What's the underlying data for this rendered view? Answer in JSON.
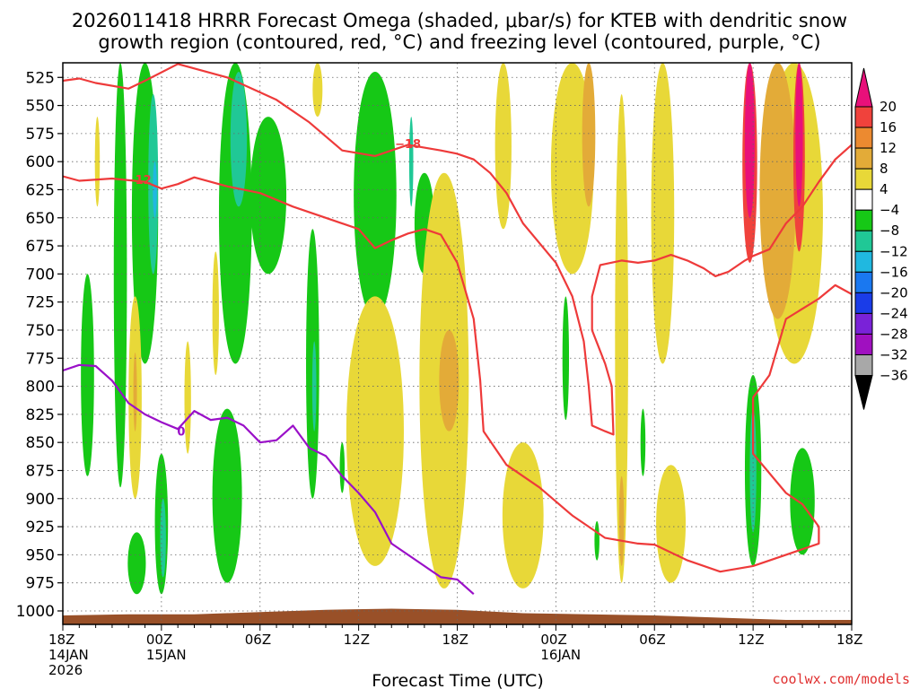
{
  "chart_data": {
    "type": "heatmap",
    "title_line1": "2026011418 HRRR Forecast Omega (shaded, μbar/s) for KTEB with dendritic snow",
    "title_line2": "growth region (contoured, red, °C) and freezing level (contoured, purple, °C)",
    "xlabel": "Forecast Time (UTC)",
    "credit": "coolwx.com/models",
    "x_range_hours": [
      0,
      48
    ],
    "y_range_mb": [
      512,
      1012
    ],
    "y_ticks": [
      525,
      550,
      575,
      600,
      625,
      650,
      675,
      700,
      725,
      750,
      775,
      800,
      825,
      850,
      875,
      900,
      925,
      950,
      975,
      1000
    ],
    "x_ticks": [
      {
        "hour": 0,
        "l1": "18Z",
        "l2": "14JAN",
        "l3": "2026"
      },
      {
        "hour": 6,
        "l1": "00Z",
        "l2": "15JAN",
        "l3": ""
      },
      {
        "hour": 12,
        "l1": "06Z",
        "l2": "",
        "l3": ""
      },
      {
        "hour": 18,
        "l1": "12Z",
        "l2": "",
        "l3": ""
      },
      {
        "hour": 24,
        "l1": "18Z",
        "l2": "",
        "l3": ""
      },
      {
        "hour": 30,
        "l1": "00Z",
        "l2": "16JAN",
        "l3": ""
      },
      {
        "hour": 36,
        "l1": "06Z",
        "l2": "",
        "l3": ""
      },
      {
        "hour": 42,
        "l1": "12Z",
        "l2": "",
        "l3": ""
      },
      {
        "hour": 48,
        "l1": "18Z",
        "l2": "",
        "l3": ""
      }
    ],
    "colorbar": {
      "top_label": "20",
      "bins": [
        {
          "lo": 20,
          "hi": 24,
          "color": "#e8107a"
        },
        {
          "lo": 16,
          "hi": 20,
          "color": "#f0423c"
        },
        {
          "lo": 12,
          "hi": 16,
          "color": "#ec8a30"
        },
        {
          "lo": 8,
          "hi": 12,
          "color": "#e3ab38"
        },
        {
          "lo": 4,
          "hi": 8,
          "color": "#e8d838"
        },
        {
          "lo": -4,
          "hi": 4,
          "color": "#ffffff"
        },
        {
          "lo": -8,
          "hi": -4,
          "color": "#16c816"
        },
        {
          "lo": -12,
          "hi": -8,
          "color": "#20c896"
        },
        {
          "lo": -16,
          "hi": -12,
          "color": "#20b8e0"
        },
        {
          "lo": -20,
          "hi": -16,
          "color": "#1a78f0"
        },
        {
          "lo": -24,
          "hi": -20,
          "color": "#1a3ce8"
        },
        {
          "lo": -28,
          "hi": -24,
          "color": "#7a22d8"
        },
        {
          "lo": -32,
          "hi": -28,
          "color": "#a010c0"
        },
        {
          "lo": -36,
          "hi": -32,
          "color": "#a8a8a8"
        },
        {
          "lo": -40,
          "hi": -36,
          "color": "#000000"
        }
      ],
      "labels": [
        "16",
        "12",
        "8",
        "4",
        "−4",
        "−8",
        "−12",
        "−16",
        "−20",
        "−24",
        "−28",
        "−32",
        "−36"
      ]
    },
    "omega_features": [
      {
        "name": "green-column-0",
        "hour": 1.5,
        "p_top": 700,
        "p_bot": 880,
        "w": 0.8,
        "value": -6
      },
      {
        "name": "green-column-1",
        "hour": 3.5,
        "p_top": 512,
        "p_bot": 890,
        "w": 0.8,
        "value": -6
      },
      {
        "name": "green-column-2",
        "hour": 5.0,
        "p_top": 512,
        "p_bot": 780,
        "w": 1.6,
        "value": -7
      },
      {
        "name": "teal-core-2",
        "hour": 5.5,
        "p_top": 540,
        "p_bot": 700,
        "w": 0.6,
        "value": -10
      },
      {
        "name": "blue-core-2",
        "hour": 5.6,
        "p_top": 600,
        "p_bot": 650,
        "w": 0.25,
        "value": -14
      },
      {
        "name": "green-low-a",
        "hour": 4.5,
        "p_top": 930,
        "p_bot": 985,
        "w": 1.1,
        "value": -7
      },
      {
        "name": "green-low-b",
        "hour": 6.0,
        "p_top": 860,
        "p_bot": 985,
        "w": 0.8,
        "value": -8
      },
      {
        "name": "teal-low-b",
        "hour": 6.1,
        "p_top": 900,
        "p_bot": 970,
        "w": 0.35,
        "value": -10
      },
      {
        "name": "green-column-3",
        "hour": 10.5,
        "p_top": 512,
        "p_bot": 780,
        "w": 2.0,
        "value": -7
      },
      {
        "name": "teal-core-3",
        "hour": 10.7,
        "p_top": 520,
        "p_bot": 640,
        "w": 1.0,
        "value": -9
      },
      {
        "name": "green-column-4",
        "hour": 12.5,
        "p_top": 560,
        "p_bot": 700,
        "w": 2.2,
        "value": -6
      },
      {
        "name": "green-low-c",
        "hour": 10.0,
        "p_top": 820,
        "p_bot": 975,
        "w": 1.8,
        "value": -7
      },
      {
        "name": "green-column-5",
        "hour": 15.2,
        "p_top": 660,
        "p_bot": 900,
        "w": 0.8,
        "value": -6
      },
      {
        "name": "teal-core-5",
        "hour": 15.3,
        "p_top": 760,
        "p_bot": 840,
        "w": 0.25,
        "value": -10
      },
      {
        "name": "green-column-6",
        "hour": 19.0,
        "p_top": 520,
        "p_bot": 740,
        "w": 2.6,
        "value": -6
      },
      {
        "name": "teal-core-6",
        "hour": 21.2,
        "p_top": 560,
        "p_bot": 640,
        "w": 0.25,
        "value": -9
      },
      {
        "name": "green-column-7",
        "hour": 22.0,
        "p_top": 610,
        "p_bot": 700,
        "w": 1.2,
        "value": -6
      },
      {
        "name": "green-small-1",
        "hour": 17.0,
        "p_top": 850,
        "p_bot": 895,
        "w": 0.3,
        "value": -6
      },
      {
        "name": "green-small-2",
        "hour": 30.6,
        "p_top": 720,
        "p_bot": 830,
        "w": 0.4,
        "value": -6
      },
      {
        "name": "green-small-3",
        "hour": 35.3,
        "p_top": 820,
        "p_bot": 880,
        "w": 0.3,
        "value": -6
      },
      {
        "name": "green-small-4",
        "hour": 32.5,
        "p_top": 920,
        "p_bot": 955,
        "w": 0.3,
        "value": -6
      },
      {
        "name": "green-column-8",
        "hour": 42.0,
        "p_top": 790,
        "p_bot": 960,
        "w": 1.0,
        "value": -7
      },
      {
        "name": "teal-core-8",
        "hour": 42.0,
        "p_top": 820,
        "p_bot": 930,
        "w": 0.4,
        "value": -12
      },
      {
        "name": "green-column-9",
        "hour": 45.0,
        "p_top": 855,
        "p_bot": 950,
        "w": 1.5,
        "value": -7
      },
      {
        "name": "yellow-upper-1",
        "hour": 2.1,
        "p_top": 560,
        "p_bot": 640,
        "w": 0.3,
        "value": 5
      },
      {
        "name": "yellow-mid-1",
        "hour": 4.4,
        "p_top": 720,
        "p_bot": 900,
        "w": 0.8,
        "value": 5
      },
      {
        "name": "orange-mid-1",
        "hour": 4.4,
        "p_top": 770,
        "p_bot": 840,
        "w": 0.2,
        "value": 9
      },
      {
        "name": "yellow-mid-2",
        "hour": 7.6,
        "p_top": 760,
        "p_bot": 860,
        "w": 0.4,
        "value": 5
      },
      {
        "name": "yellow-mid-3",
        "hour": 9.3,
        "p_top": 680,
        "p_bot": 790,
        "w": 0.4,
        "value": 5
      },
      {
        "name": "yellow-main-a",
        "hour": 19.0,
        "p_top": 720,
        "p_bot": 960,
        "w": 3.5,
        "value": 6
      },
      {
        "name": "yellow-main-b",
        "hour": 23.2,
        "p_top": 610,
        "p_bot": 980,
        "w": 3.0,
        "value": 6
      },
      {
        "name": "orange-main",
        "hour": 23.5,
        "p_top": 750,
        "p_bot": 840,
        "w": 1.2,
        "value": 9
      },
      {
        "name": "yellow-top-1",
        "hour": 15.5,
        "p_top": 512,
        "p_bot": 560,
        "w": 0.6,
        "value": 5
      },
      {
        "name": "yellow-top-2",
        "hour": 26.8,
        "p_top": 512,
        "p_bot": 660,
        "w": 1.0,
        "value": 6
      },
      {
        "name": "yellow-top-3",
        "hour": 31.0,
        "p_top": 512,
        "p_bot": 700,
        "w": 2.6,
        "value": 7
      },
      {
        "name": "orange-top-3",
        "hour": 32.0,
        "p_top": 512,
        "p_bot": 640,
        "w": 0.8,
        "value": 9
      },
      {
        "name": "yellow-top-4",
        "hour": 36.5,
        "p_top": 512,
        "p_bot": 780,
        "w": 1.4,
        "value": 6
      },
      {
        "name": "yellow-low-1",
        "hour": 28.0,
        "p_top": 850,
        "p_bot": 980,
        "w": 2.5,
        "value": 5
      },
      {
        "name": "yellow-low-2",
        "hour": 34.0,
        "p_top": 540,
        "p_bot": 975,
        "w": 0.8,
        "value": 6
      },
      {
        "name": "orange-low-2",
        "hour": 34.0,
        "p_top": 880,
        "p_bot": 960,
        "w": 0.3,
        "value": 11
      },
      {
        "name": "yellow-low-3",
        "hour": 37.0,
        "p_top": 870,
        "p_bot": 975,
        "w": 1.8,
        "value": 5
      },
      {
        "name": "yellow-right",
        "hour": 44.5,
        "p_top": 512,
        "p_bot": 780,
        "w": 3.5,
        "value": 6
      },
      {
        "name": "orange-right",
        "hour": 43.5,
        "p_top": 512,
        "p_bot": 740,
        "w": 2.2,
        "value": 10
      },
      {
        "name": "red-right-1",
        "hour": 41.8,
        "p_top": 512,
        "p_bot": 690,
        "w": 0.9,
        "value": 17
      },
      {
        "name": "magenta-right-1",
        "hour": 41.8,
        "p_top": 512,
        "p_bot": 650,
        "w": 0.6,
        "value": 22
      },
      {
        "name": "red-right-2",
        "hour": 44.8,
        "p_top": 512,
        "p_bot": 680,
        "w": 0.7,
        "value": 17
      },
      {
        "name": "magenta-right-2",
        "hour": 44.8,
        "p_top": 512,
        "p_bot": 640,
        "w": 0.45,
        "value": 22
      }
    ],
    "series": [
      {
        "name": "-12°C isotherm",
        "color": "#ee3a3a",
        "label": "−12",
        "label_at": [
          4.6,
          616
        ],
        "points": [
          [
            0,
            613
          ],
          [
            1,
            617
          ],
          [
            3,
            615
          ],
          [
            5,
            618
          ],
          [
            6,
            624
          ],
          [
            7,
            620
          ],
          [
            8,
            614
          ],
          [
            10,
            622
          ],
          [
            12,
            628
          ],
          [
            14,
            640
          ],
          [
            16,
            650
          ],
          [
            18,
            660
          ],
          [
            19,
            677
          ],
          [
            20,
            670
          ],
          [
            21,
            664
          ],
          [
            22,
            660
          ],
          [
            23,
            665
          ],
          [
            24,
            690
          ],
          [
            25,
            740
          ],
          [
            25.4,
            795
          ],
          [
            25.6,
            840
          ],
          [
            27,
            870
          ],
          [
            29,
            890
          ],
          [
            31,
            915
          ],
          [
            33,
            935
          ],
          [
            35,
            940
          ],
          [
            36,
            941
          ],
          [
            38,
            955
          ],
          [
            40,
            965
          ],
          [
            42,
            960
          ],
          [
            44,
            950
          ],
          [
            46,
            940
          ],
          [
            46,
            925
          ],
          [
            45,
            905
          ],
          [
            44,
            895
          ],
          [
            42,
            860
          ],
          [
            42,
            810
          ],
          [
            43,
            790
          ],
          [
            44,
            740
          ],
          [
            46,
            722
          ],
          [
            47,
            710
          ],
          [
            48,
            718
          ]
        ]
      },
      {
        "name": "-18°C isotherm",
        "color": "#ee3a3a",
        "label": "−18",
        "label_at": [
          21.0,
          584
        ],
        "points": [
          [
            0,
            528
          ],
          [
            1,
            526
          ],
          [
            2,
            530
          ],
          [
            4,
            535
          ],
          [
            5,
            528
          ],
          [
            7,
            513
          ],
          [
            10,
            525
          ],
          [
            13,
            545
          ],
          [
            15,
            565
          ],
          [
            17,
            590
          ],
          [
            19,
            595
          ],
          [
            20,
            590
          ],
          [
            21,
            585
          ],
          [
            23,
            590
          ],
          [
            24,
            593
          ],
          [
            25,
            598
          ],
          [
            26,
            610
          ],
          [
            27,
            628
          ],
          [
            28,
            655
          ],
          [
            30,
            690
          ],
          [
            31,
            720
          ],
          [
            31.7,
            760
          ],
          [
            32,
            800
          ],
          [
            32.2,
            835
          ],
          [
            33,
            840
          ],
          [
            33.5,
            843
          ],
          [
            33.4,
            800
          ],
          [
            33,
            780
          ],
          [
            32.2,
            750
          ],
          [
            32.2,
            720
          ],
          [
            32.7,
            692
          ],
          [
            34,
            688
          ],
          [
            35,
            690
          ],
          [
            36,
            688
          ],
          [
            37,
            683
          ],
          [
            38,
            688
          ],
          [
            39,
            695
          ],
          [
            39.7,
            702
          ],
          [
            40.5,
            698
          ],
          [
            41.5,
            688
          ],
          [
            42,
            684
          ],
          [
            43,
            678
          ],
          [
            44,
            655
          ],
          [
            45,
            640
          ],
          [
            46,
            618
          ],
          [
            47,
            598
          ],
          [
            48,
            585
          ]
        ]
      },
      {
        "name": "0°C freezing level",
        "color": "#9a10c8",
        "label": "0",
        "label_at": [
          7.2,
          840
        ],
        "points": [
          [
            0,
            786
          ],
          [
            1,
            781
          ],
          [
            2,
            782
          ],
          [
            3,
            795
          ],
          [
            4,
            815
          ],
          [
            5,
            825
          ],
          [
            6,
            832
          ],
          [
            7,
            838
          ],
          [
            8,
            822
          ],
          [
            9,
            830
          ],
          [
            10,
            828
          ],
          [
            11,
            835
          ],
          [
            12,
            850
          ],
          [
            13,
            848
          ],
          [
            14,
            835
          ],
          [
            15,
            855
          ],
          [
            16,
            862
          ],
          [
            17,
            880
          ],
          [
            18,
            895
          ],
          [
            19,
            912
          ],
          [
            20,
            940
          ],
          [
            21,
            950
          ],
          [
            22,
            960
          ],
          [
            23,
            970
          ],
          [
            24,
            972
          ],
          [
            25,
            985
          ]
        ]
      }
    ],
    "terrain": {
      "color": "#995028",
      "surface_mb": [
        [
          0,
          1004
        ],
        [
          4,
          1003
        ],
        [
          8,
          1003
        ],
        [
          12,
          1001
        ],
        [
          16,
          999
        ],
        [
          20,
          998
        ],
        [
          24,
          999
        ],
        [
          28,
          1002
        ],
        [
          32,
          1003
        ],
        [
          36,
          1004
        ],
        [
          40,
          1006
        ],
        [
          44,
          1008
        ],
        [
          48,
          1008
        ]
      ]
    }
  }
}
